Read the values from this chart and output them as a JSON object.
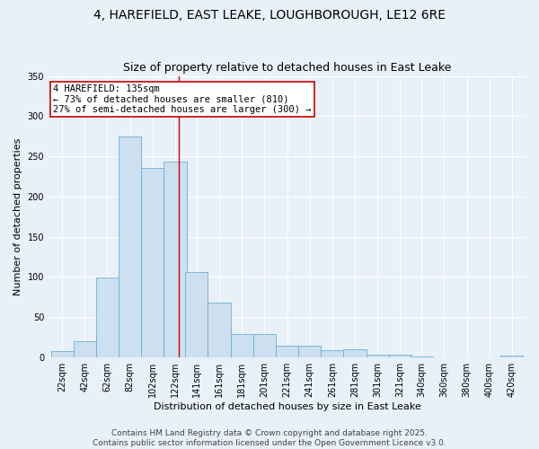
{
  "title1": "4, HAREFIELD, EAST LEAKE, LOUGHBOROUGH, LE12 6RE",
  "title2": "Size of property relative to detached houses in East Leake",
  "xlabel": "Distribution of detached houses by size in East Leake",
  "ylabel": "Number of detached properties",
  "annotation_line1": "4 HAREFIELD: 135sqm",
  "annotation_line2": "← 73% of detached houses are smaller (810)",
  "annotation_line3": "27% of semi-detached houses are larger (300) →",
  "bar_color": "#cce0f0",
  "bar_edge_color": "#6aaed6",
  "vline_color": "#cc0000",
  "vline_x": 135,
  "bg_color": "#e8f0f8",
  "annotation_box_color": "#ffffff",
  "annotation_box_edge": "#cc0000",
  "bins": [
    22,
    42,
    62,
    82,
    102,
    122,
    141,
    161,
    181,
    201,
    221,
    241,
    261,
    281,
    301,
    321,
    340,
    360,
    380,
    400,
    420
  ],
  "heights": [
    7,
    20,
    99,
    275,
    236,
    243,
    106,
    68,
    29,
    29,
    14,
    14,
    9,
    10,
    3,
    3,
    1,
    0,
    0,
    0,
    2
  ],
  "bin_width": 20,
  "ylim": [
    0,
    350
  ],
  "yticks": [
    0,
    50,
    100,
    150,
    200,
    250,
    300,
    350
  ],
  "footer1": "Contains HM Land Registry data © Crown copyright and database right 2025.",
  "footer2": "Contains public sector information licensed under the Open Government Licence v3.0.",
  "title_fontsize": 10,
  "subtitle_fontsize": 9,
  "axis_label_fontsize": 8,
  "tick_fontsize": 7,
  "annotation_fontsize": 7.5,
  "footer_fontsize": 6.5
}
